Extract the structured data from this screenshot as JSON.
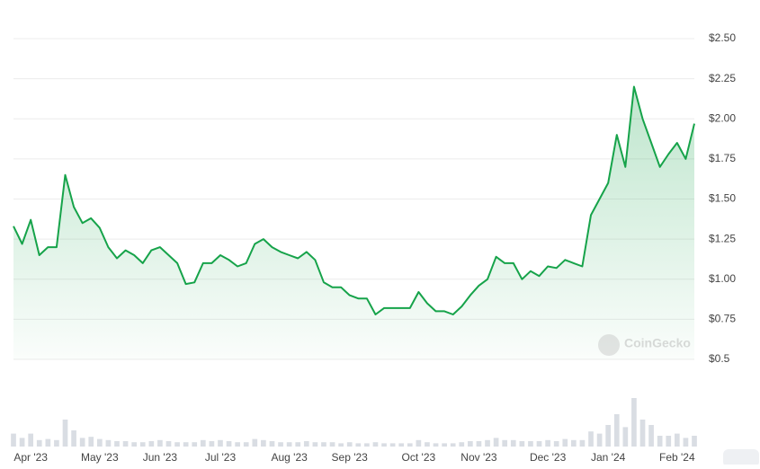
{
  "chart_data": {
    "type": "line",
    "watermark": "CoinGecko",
    "color": "#16a34a",
    "grid": true,
    "ylim": [
      0.5,
      2.5
    ],
    "yticks": [
      {
        "value": 2.5,
        "label": "$2.50"
      },
      {
        "value": 2.25,
        "label": "$2.25"
      },
      {
        "value": 2.0,
        "label": "$2.00"
      },
      {
        "value": 1.75,
        "label": "$1.75"
      },
      {
        "value": 1.5,
        "label": "$1.50"
      },
      {
        "value": 1.25,
        "label": "$1.25"
      },
      {
        "value": 1.0,
        "label": "$1.00"
      },
      {
        "value": 0.75,
        "label": "$0.75"
      },
      {
        "value": 0.5,
        "label": "$0.5"
      }
    ],
    "categories": [
      null,
      null,
      "Apr '23",
      null,
      null,
      null,
      null,
      null,
      null,
      null,
      "May '23",
      null,
      null,
      null,
      null,
      null,
      null,
      "Jun '23",
      null,
      null,
      null,
      null,
      null,
      null,
      "Jul '23",
      null,
      null,
      null,
      null,
      null,
      null,
      null,
      "Aug '23",
      null,
      null,
      null,
      null,
      null,
      null,
      "Sep '23",
      null,
      null,
      null,
      null,
      null,
      null,
      null,
      "Oct '23",
      null,
      null,
      null,
      null,
      null,
      null,
      "Nov '23",
      null,
      null,
      null,
      null,
      null,
      null,
      null,
      "Dec '23",
      null,
      null,
      null,
      null,
      null,
      null,
      "Jan '24",
      null,
      null,
      null,
      null,
      null,
      null,
      null,
      "Feb '24",
      null,
      null
    ],
    "values": [
      1.33,
      1.22,
      1.37,
      1.15,
      1.2,
      1.2,
      1.65,
      1.45,
      1.35,
      1.38,
      1.32,
      1.2,
      1.13,
      1.18,
      1.15,
      1.1,
      1.18,
      1.2,
      1.15,
      1.1,
      0.97,
      0.98,
      1.1,
      1.1,
      1.15,
      1.12,
      1.08,
      1.1,
      1.22,
      1.25,
      1.2,
      1.17,
      1.15,
      1.13,
      1.17,
      1.12,
      0.98,
      0.95,
      0.95,
      0.9,
      0.88,
      0.88,
      0.78,
      0.82,
      0.82,
      0.82,
      0.82,
      0.92,
      0.85,
      0.8,
      0.8,
      0.78,
      0.83,
      0.9,
      0.96,
      1.0,
      1.14,
      1.1,
      1.1,
      1.0,
      1.05,
      1.02,
      1.08,
      1.07,
      1.12,
      1.1,
      1.08,
      1.4,
      1.5,
      1.6,
      1.9,
      1.7,
      2.2,
      2.0,
      1.85,
      1.7,
      1.78,
      1.85,
      1.75,
      1.97
    ],
    "volume_ylim": [
      0,
      50
    ],
    "volume": [
      12,
      8,
      12,
      6,
      7,
      6,
      25,
      15,
      8,
      9,
      7,
      6,
      5,
      5,
      4,
      4,
      5,
      6,
      5,
      4,
      4,
      4,
      6,
      5,
      6,
      5,
      4,
      4,
      7,
      6,
      5,
      4,
      4,
      4,
      5,
      4,
      4,
      4,
      3,
      4,
      3,
      3,
      4,
      3,
      3,
      3,
      3,
      6,
      4,
      3,
      3,
      3,
      4,
      5,
      5,
      6,
      8,
      6,
      6,
      5,
      5,
      5,
      6,
      5,
      7,
      6,
      6,
      14,
      12,
      20,
      30,
      18,
      45,
      25,
      20,
      10,
      10,
      12,
      8,
      10
    ]
  }
}
